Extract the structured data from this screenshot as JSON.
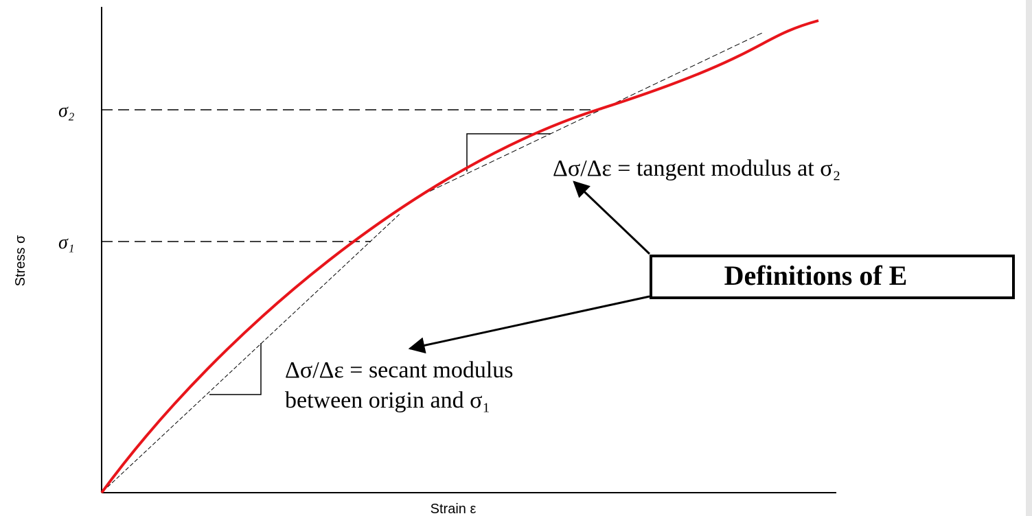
{
  "axes": {
    "y_label": "Stress σ",
    "x_label": "Strain ε",
    "y_ticks": [
      "σ₂",
      "σ₁"
    ]
  },
  "annotations": {
    "tangent": "Δσ/Δε = tangent modulus at σ₂",
    "secant_line1": "Δσ/Δε = secant modulus",
    "secant_line2": "between origin and σ₁"
  },
  "box": {
    "label": "Definitions of E"
  }
}
